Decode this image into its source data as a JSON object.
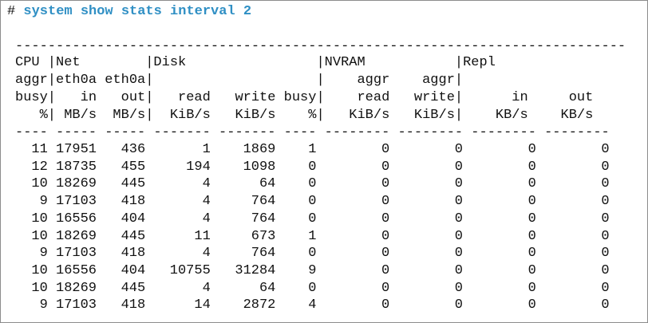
{
  "prompt": "#",
  "command": "system show stats interval 2",
  "top_rule": "---------------------------------------------------------------------------",
  "header_lines": [
    "CPU |Net        |Disk                |NVRAM           |Repl",
    "aggr|eth0a eth0a|                    |    aggr    aggr|",
    "busy|   in   out|   read   write busy|    read   write|      in     out",
    "   %| MB/s  MB/s|  KiB/s   KiB/s    %|   KiB/s   KiB/s|    KB/s    KB/s"
  ],
  "header_rule": "---- ----- ----- ------- ------- ---- -------- -------- -------- --------",
  "rows": [
    [
      11,
      17951,
      436,
      1,
      1869,
      1,
      0,
      0,
      0,
      0
    ],
    [
      12,
      18735,
      455,
      194,
      1098,
      0,
      0,
      0,
      0,
      0
    ],
    [
      10,
      18269,
      445,
      4,
      64,
      0,
      0,
      0,
      0,
      0
    ],
    [
      9,
      17103,
      418,
      4,
      764,
      0,
      0,
      0,
      0,
      0
    ],
    [
      10,
      16556,
      404,
      4,
      764,
      0,
      0,
      0,
      0,
      0
    ],
    [
      10,
      18269,
      445,
      11,
      673,
      1,
      0,
      0,
      0,
      0
    ],
    [
      9,
      17103,
      418,
      4,
      764,
      0,
      0,
      0,
      0,
      0
    ],
    [
      10,
      16556,
      404,
      10755,
      31284,
      9,
      0,
      0,
      0,
      0
    ],
    [
      10,
      18269,
      445,
      4,
      64,
      0,
      0,
      0,
      0,
      0
    ],
    [
      9,
      17103,
      418,
      14,
      2872,
      4,
      0,
      0,
      0,
      0
    ]
  ]
}
